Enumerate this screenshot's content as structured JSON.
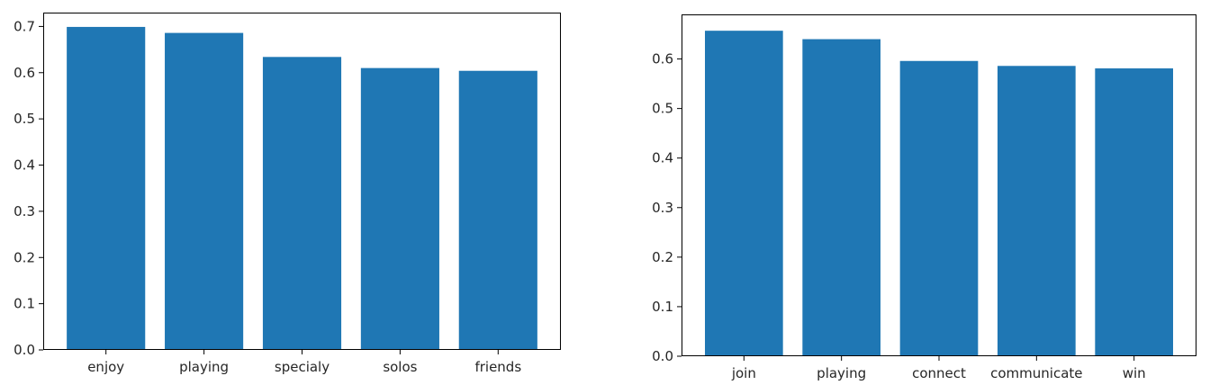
{
  "chart_data": [
    {
      "type": "bar",
      "categories": [
        "enjoy",
        "playing",
        "specialy",
        "solos",
        "friends"
      ],
      "values": [
        0.699,
        0.686,
        0.634,
        0.61,
        0.604
      ],
      "ylim": [
        0,
        0.73
      ],
      "yticks": [
        0.0,
        0.1,
        0.2,
        0.3,
        0.4,
        0.5,
        0.6,
        0.7
      ],
      "ytick_labels": [
        "0.0",
        "0.1",
        "0.2",
        "0.3",
        "0.4",
        "0.5",
        "0.6",
        "0.7"
      ],
      "color": "#1f77b4",
      "grid": false,
      "title": "",
      "xlabel": "",
      "ylabel": ""
    },
    {
      "type": "bar",
      "categories": [
        "join",
        "playing",
        "connect",
        "communicate",
        "win"
      ],
      "values": [
        0.657,
        0.64,
        0.596,
        0.586,
        0.581
      ],
      "ylim": [
        0,
        0.69
      ],
      "yticks": [
        0.0,
        0.1,
        0.2,
        0.3,
        0.4,
        0.5,
        0.6
      ],
      "ytick_labels": [
        "0.0",
        "0.1",
        "0.2",
        "0.3",
        "0.4",
        "0.5",
        "0.6"
      ],
      "color": "#1f77b4",
      "grid": false,
      "title": "",
      "xlabel": "",
      "ylabel": ""
    }
  ]
}
